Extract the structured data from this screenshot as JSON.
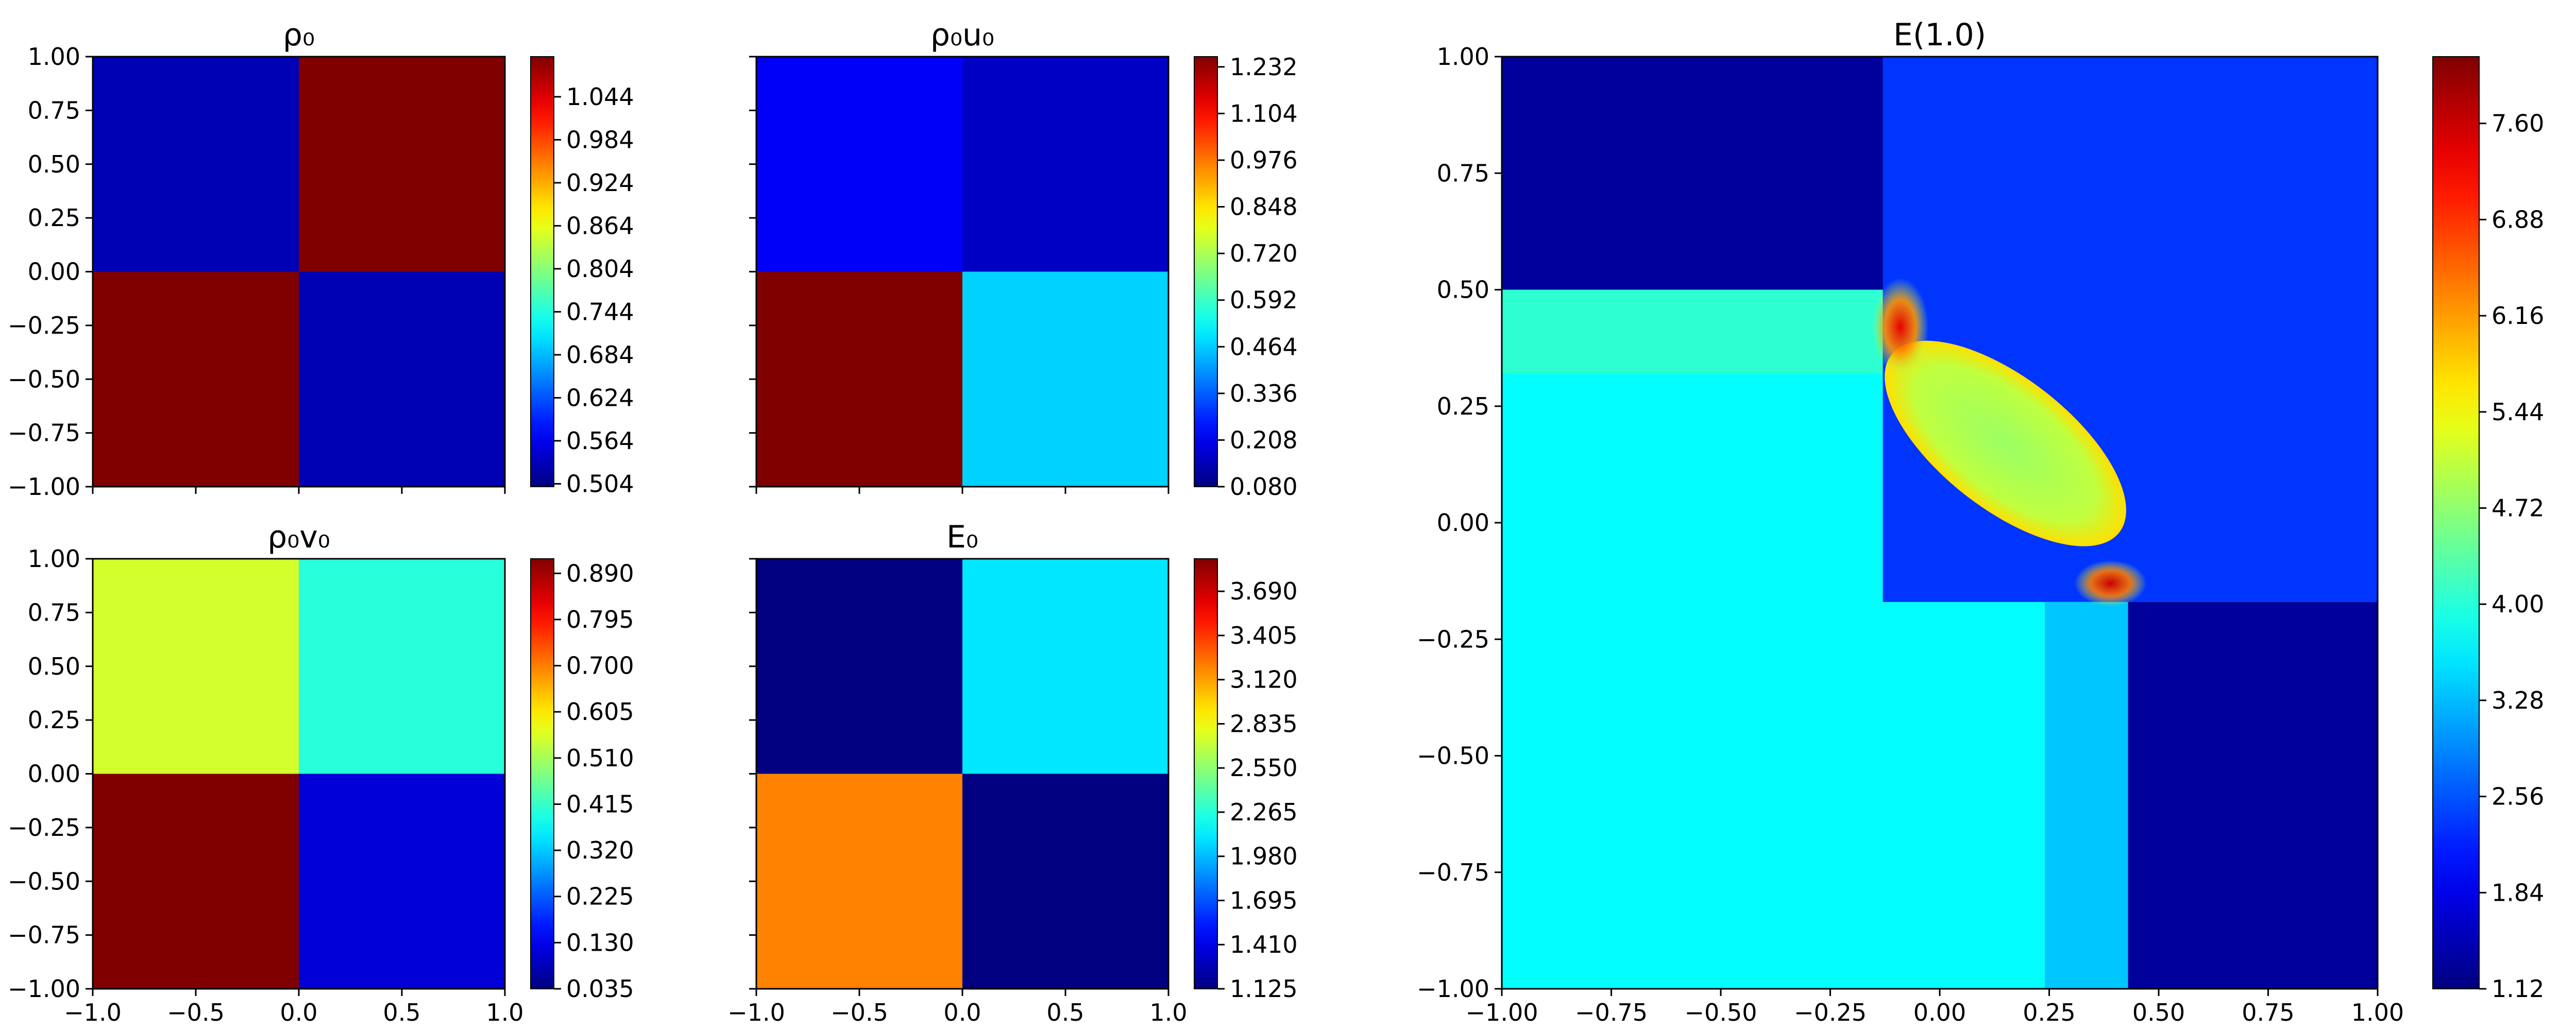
{
  "chart_data": [
    {
      "type": "heatmap",
      "title": "ρ₀",
      "xlim": [
        -1.0,
        1.0
      ],
      "ylim": [
        -1.0,
        1.0
      ],
      "xticks": [
        "−1.0",
        "−0.5",
        "0.0",
        "0.5",
        "1.0"
      ],
      "yticks": [
        "1.00",
        "0.75",
        "0.50",
        "0.25",
        "0.00",
        "−0.25",
        "−0.50",
        "−0.75",
        "−1.00"
      ],
      "show_xticklabels": false,
      "show_yticklabels": true,
      "cmap": "jet",
      "clim": [
        0.5,
        1.1
      ],
      "colorbar_ticks": [
        "1.044",
        "0.984",
        "0.924",
        "0.864",
        "0.804",
        "0.744",
        "0.684",
        "0.624",
        "0.564",
        "0.504"
      ],
      "quadrants": {
        "top_left": 0.5313,
        "top_right": 1.1,
        "bottom_left": 1.1,
        "bottom_right": 0.5313
      }
    },
    {
      "type": "heatmap",
      "title": "ρ₀u₀",
      "xlim": [
        -1.0,
        1.0
      ],
      "ylim": [
        -1.0,
        1.0
      ],
      "xticks": [
        "−1.0",
        "−0.5",
        "0.0",
        "0.5",
        "1.0"
      ],
      "yticks": [
        "1.00",
        "0.75",
        "0.50",
        "0.25",
        "0.00",
        "−0.25",
        "−0.50",
        "−0.75",
        "−1.00"
      ],
      "show_xticklabels": false,
      "show_yticklabels": false,
      "cmap": "jet",
      "clim": [
        0.08,
        1.26
      ],
      "colorbar_ticks": [
        "1.232",
        "1.104",
        "0.976",
        "0.848",
        "0.720",
        "0.592",
        "0.464",
        "0.336",
        "0.208",
        "0.080"
      ],
      "quadrants": {
        "top_left": 0.22,
        "top_right": 0.16,
        "bottom_left": 1.26,
        "bottom_right": 0.47
      }
    },
    {
      "type": "heatmap",
      "title": "ρ₀v₀",
      "xlim": [
        -1.0,
        1.0
      ],
      "ylim": [
        -1.0,
        1.0
      ],
      "xticks": [
        "−1.0",
        "−0.5",
        "0.0",
        "0.5",
        "1.0"
      ],
      "yticks": [
        "1.00",
        "0.75",
        "0.50",
        "0.25",
        "0.00",
        "−0.25",
        "−0.50",
        "−0.75",
        "−1.00"
      ],
      "show_xticklabels": true,
      "show_yticklabels": true,
      "cmap": "jet",
      "clim": [
        0.035,
        0.92
      ],
      "colorbar_ticks": [
        "0.890",
        "0.795",
        "0.700",
        "0.605",
        "0.510",
        "0.415",
        "0.320",
        "0.225",
        "0.130",
        "0.035"
      ],
      "quadrants": {
        "top_left": 0.55,
        "top_right": 0.4,
        "bottom_left": 0.92,
        "bottom_right": 0.11
      }
    },
    {
      "type": "heatmap",
      "title": "E₀",
      "xlim": [
        -1.0,
        1.0
      ],
      "ylim": [
        -1.0,
        1.0
      ],
      "xticks": [
        "−1.0",
        "−0.5",
        "0.0",
        "0.5",
        "1.0"
      ],
      "yticks": [
        "1.00",
        "0.75",
        "0.50",
        "0.25",
        "0.00",
        "−0.25",
        "−0.50",
        "−0.75",
        "−1.00"
      ],
      "show_xticklabels": true,
      "show_yticklabels": false,
      "cmap": "jet",
      "clim": [
        1.125,
        3.9
      ],
      "colorbar_ticks": [
        "3.690",
        "3.405",
        "3.120",
        "2.835",
        "2.550",
        "2.265",
        "1.980",
        "1.695",
        "1.410",
        "1.125"
      ],
      "quadrants": {
        "top_left": 1.125,
        "top_right": 2.1,
        "bottom_left": 3.2,
        "bottom_right": 1.125
      }
    },
    {
      "type": "heatmap",
      "title": "E(1.0)",
      "xlim": [
        -1.0,
        1.0
      ],
      "ylim": [
        -1.0,
        1.0
      ],
      "xticks": [
        "−1.00",
        "−0.75",
        "−0.50",
        "−0.25",
        "0.00",
        "0.25",
        "0.50",
        "0.75",
        "1.00"
      ],
      "yticks": [
        "1.00",
        "0.75",
        "0.50",
        "0.25",
        "0.00",
        "−0.25",
        "−0.50",
        "−0.75",
        "−1.00"
      ],
      "show_xticklabels": true,
      "show_yticklabels": true,
      "cmap": "jet",
      "clim": [
        1.12,
        8.1
      ],
      "colorbar_ticks": [
        "7.60",
        "6.88",
        "6.16",
        "5.44",
        "4.72",
        "4.00",
        "3.28",
        "2.56",
        "1.84",
        "1.12"
      ],
      "regions": {
        "top_left": 1.3,
        "top_right": 2.35,
        "bottom_right": 1.3,
        "bottom_left": 3.75,
        "left_strip": 4.05,
        "right_strip": 3.35,
        "ellipse": 4.8,
        "hotspot_upper": 7.4,
        "hotspot_lower": 7.6
      }
    }
  ]
}
